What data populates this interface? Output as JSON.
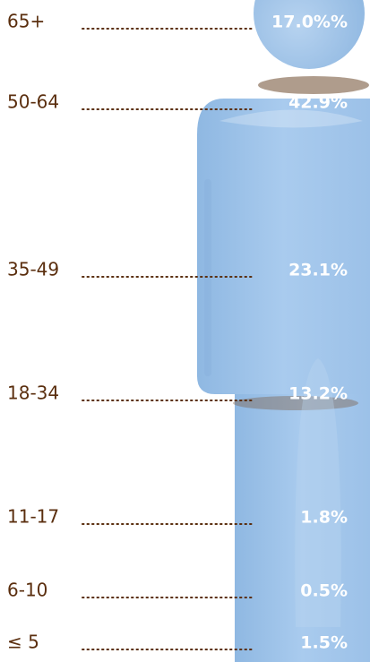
{
  "rows": [
    {
      "label": "65+",
      "value": "17.0%%"
    },
    {
      "label": "50-64",
      "value": "42.9%"
    },
    {
      "label": "35-49",
      "value": "23.1%"
    },
    {
      "label": "18-34",
      "value": "13.2%"
    },
    {
      "label": "11-17",
      "value": "1.8%"
    },
    {
      "label": "6-10",
      "value": "0.5%"
    },
    {
      "label": "≤ 5",
      "value": "1.5%"
    }
  ]
}
